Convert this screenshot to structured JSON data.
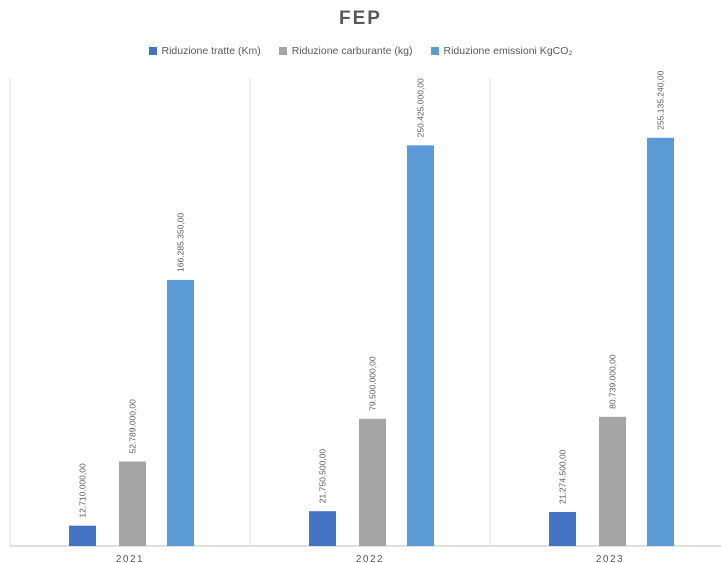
{
  "chart_data": {
    "type": "bar",
    "title": "FEP",
    "categories": [
      "2021",
      "2022",
      "2023"
    ],
    "series": [
      {
        "name": "Riduzione tratte (Km)",
        "color": "#4472C4",
        "values": [
          12710000,
          21750500,
          21274500
        ],
        "labels": [
          "12.710.000,00",
          "21.750.500,00",
          "21.274.500,00"
        ]
      },
      {
        "name": "Riduzione carburante (kg)",
        "color": "#A5A5A5",
        "values": [
          52789000,
          79500000,
          80739000
        ],
        "labels": [
          "52.789.000,00",
          "79.500.000,00",
          "80.739.000,00"
        ]
      },
      {
        "name": "Riduzione emissioni KgCO₂",
        "color": "#5B9BD5",
        "values": [
          166285350,
          250425000,
          255135240
        ],
        "labels": [
          "166.285.350,00",
          "250.425.000,00",
          "255.135.240,00"
        ]
      }
    ],
    "ylim": [
      0,
      300000000
    ],
    "grid": false,
    "legend_position": "top"
  }
}
